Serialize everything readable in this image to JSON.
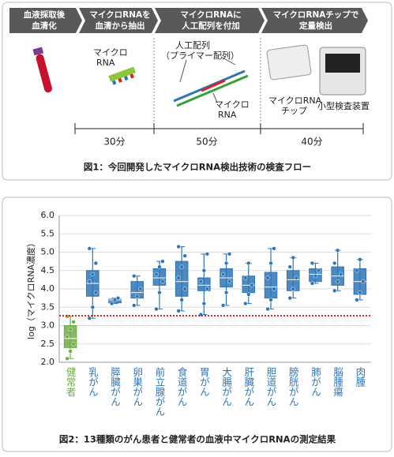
{
  "figure1": {
    "steps": [
      [
        "血液採取後",
        "血清化"
      ],
      [
        "マイクロRNAを",
        "血清から抽出"
      ],
      [
        "マイクロRNAに",
        "人工配列を付加"
      ],
      [
        "マイクロRNAチップで",
        "定量検出"
      ]
    ],
    "labels": {
      "mirna1": [
        "マイクロ",
        "RNA"
      ],
      "artificial": [
        "人工配列",
        "（プライマー配列）"
      ],
      "mirna2": [
        "マイクロ",
        "RNA"
      ],
      "chip": [
        "マイクロRNA",
        "チップ"
      ],
      "device": "小型検査装置"
    },
    "durations": [
      "30分",
      "50分",
      "40分"
    ],
    "caption": "図1：今回開発したマイクロRNA検出技術の検査フロー"
  },
  "chart_data": {
    "type": "box",
    "y_label": "log（マイクロRNA濃度）",
    "categories": [
      "健常者",
      "乳がん",
      "膵臓がん",
      "卵巣がん",
      "前立腺がん",
      "食道がん",
      "胃がん",
      "大腸がん",
      "肝臓がん",
      "胆道がん",
      "膀胱がん",
      "肺がん",
      "脳腫瘍",
      "肉腫"
    ],
    "colors": [
      "#70ad47",
      "#2e75b6",
      "#2e75b6",
      "#2e75b6",
      "#2e75b6",
      "#2e75b6",
      "#2e75b6",
      "#2e75b6",
      "#2e75b6",
      "#2e75b6",
      "#2e75b6",
      "#2e75b6",
      "#2e75b6",
      "#2e75b6"
    ],
    "boxes": [
      {
        "min": 2.1,
        "q1": 2.4,
        "median": 2.65,
        "q3": 3.0,
        "max": 3.25,
        "points": [
          2.1,
          2.3,
          2.5,
          2.7,
          2.9,
          3.1,
          3.25
        ]
      },
      {
        "min": 3.2,
        "q1": 3.8,
        "median": 4.15,
        "q3": 4.5,
        "max": 5.1,
        "points": [
          3.2,
          3.5,
          3.9,
          4.2,
          4.4,
          4.7,
          5.1
        ]
      },
      {
        "min": 3.6,
        "q1": 3.62,
        "median": 3.7,
        "q3": 3.72,
        "max": 3.75,
        "points": [
          3.6,
          3.7,
          3.75
        ]
      },
      {
        "min": 3.55,
        "q1": 3.75,
        "median": 3.9,
        "q3": 4.2,
        "max": 4.35,
        "points": [
          3.55,
          3.8,
          4.0,
          4.35
        ]
      },
      {
        "min": 3.45,
        "q1": 4.1,
        "median": 4.3,
        "q3": 4.55,
        "max": 4.75,
        "points": [
          3.45,
          3.9,
          4.2,
          4.4,
          4.6,
          4.75
        ]
      },
      {
        "min": 3.4,
        "q1": 3.8,
        "median": 4.2,
        "q3": 4.75,
        "max": 5.15,
        "points": [
          3.4,
          3.7,
          4.0,
          4.3,
          4.6,
          4.9,
          5.15
        ]
      },
      {
        "min": 3.3,
        "q1": 3.95,
        "median": 4.1,
        "q3": 4.3,
        "max": 4.95,
        "points": [
          3.3,
          3.6,
          4.0,
          4.2,
          4.5,
          4.95
        ]
      },
      {
        "min": 3.55,
        "q1": 4.05,
        "median": 4.3,
        "q3": 4.55,
        "max": 4.95,
        "points": [
          3.55,
          3.9,
          4.2,
          4.4,
          4.7,
          4.95
        ]
      },
      {
        "min": 3.6,
        "q1": 3.9,
        "median": 4.1,
        "q3": 4.35,
        "max": 4.7,
        "points": [
          3.6,
          3.85,
          4.1,
          4.3,
          4.7
        ]
      },
      {
        "min": 3.45,
        "q1": 3.75,
        "median": 4.05,
        "q3": 4.45,
        "max": 5.1,
        "points": [
          3.45,
          3.7,
          4.0,
          4.3,
          4.7,
          5.1
        ]
      },
      {
        "min": 3.75,
        "q1": 3.95,
        "median": 4.25,
        "q3": 4.5,
        "max": 4.85,
        "points": [
          3.75,
          4.0,
          4.3,
          4.6,
          4.85
        ]
      },
      {
        "min": 4.15,
        "q1": 4.2,
        "median": 4.4,
        "q3": 4.55,
        "max": 4.7,
        "points": [
          4.15,
          4.35,
          4.5,
          4.7
        ]
      },
      {
        "min": 3.95,
        "q1": 4.1,
        "median": 4.35,
        "q3": 4.6,
        "max": 5.05,
        "points": [
          3.95,
          4.2,
          4.4,
          4.7,
          5.05
        ]
      },
      {
        "min": 3.7,
        "q1": 3.85,
        "median": 4.2,
        "q3": 4.55,
        "max": 4.8,
        "points": [
          3.7,
          3.9,
          4.2,
          4.5,
          4.8
        ]
      }
    ],
    "threshold": 3.27,
    "threshold_color": "#e02020",
    "ylim": [
      2.0,
      6.0
    ],
    "yticks": [
      {
        "value": 2.0,
        "label": "2.0"
      },
      2.5,
      {
        "value": 3.0,
        "label": "3.0"
      },
      3.5,
      {
        "value": 4.0,
        "label": "4.0"
      },
      4.5,
      {
        "value": 5.0,
        "label": "5.0"
      },
      5.5,
      {
        "value": 6.0,
        "label": "6.0"
      }
    ],
    "grid": true,
    "caption": "図2：13種類のがん患者と健常者の血液中マイクロRNAの測定結果"
  }
}
